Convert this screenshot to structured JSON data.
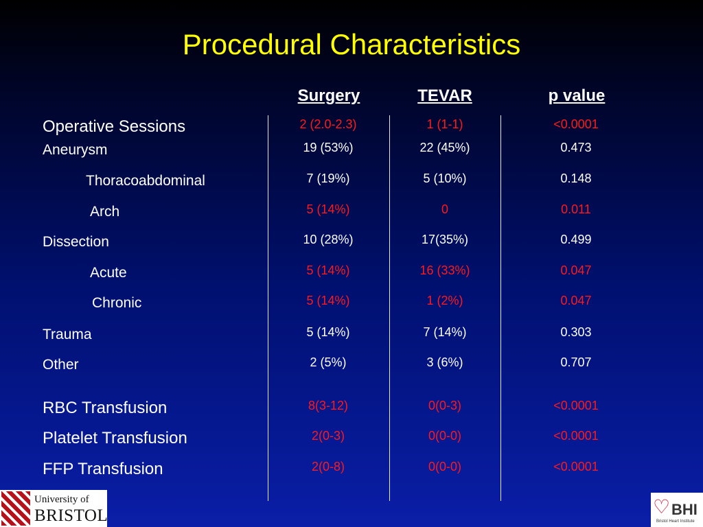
{
  "title": "Procedural Characteristics",
  "columns": [
    "Surgery",
    "TEVAR",
    "p value"
  ],
  "rows": [
    {
      "label": "Operative Sessions",
      "surgery": "2 (2.0-2.3)",
      "tevar": "1 (1-1)",
      "p": "<0.0001",
      "sig": true
    },
    {
      "label": "Aneurysm",
      "surgery": "19 (53%)",
      "tevar": "22 (45%)",
      "p": "0.473",
      "sig": false
    },
    {
      "label": "Thoracoabdominal",
      "surgery": "7 (19%)",
      "tevar": "5 (10%)",
      "p": "0.148",
      "sig": false
    },
    {
      "label": "Arch",
      "surgery": "5 (14%)",
      "tevar": "0",
      "p": "0.011",
      "sig": true
    },
    {
      "label": "Dissection",
      "surgery": "10 (28%)",
      "tevar": "17(35%)",
      "p": "0.499",
      "sig": false
    },
    {
      "label": "Acute",
      "surgery": "5 (14%)",
      "tevar": "16 (33%)",
      "p": "0.047",
      "sig": true
    },
    {
      "label": "Chronic",
      "surgery": "5 (14%)",
      "tevar": "1 (2%)",
      "p": "0.047",
      "sig": true
    },
    {
      "label": "Trauma",
      "surgery": "5 (14%)",
      "tevar": "7 (14%)",
      "p": "0.303",
      "sig": false
    },
    {
      "label": "Other",
      "surgery": "2 (5%)",
      "tevar": "3 (6%)",
      "p": "0.707",
      "sig": false
    },
    {
      "label": "RBC Transfusion",
      "surgery": "8(3-12)",
      "tevar": "0(0-3)",
      "p": "<0.0001",
      "sig": true
    },
    {
      "label": "Platelet Transfusion",
      "surgery": "2(0-3)",
      "tevar": "0(0-0)",
      "p": "<0.0001",
      "sig": true
    },
    {
      "label": "FFP Transfusion",
      "surgery": "2(0-8)",
      "tevar": "0(0-0)",
      "p": "<0.0001",
      "sig": true
    }
  ],
  "logos": {
    "university_line1": "University of",
    "university_line2": "BRISTOL",
    "bhi_name": "BHI",
    "bhi_sub": "Bristol Heart Institute"
  },
  "colors": {
    "title": "#ffff00",
    "significant": "#ff1a1a",
    "text": "#ffffff"
  }
}
